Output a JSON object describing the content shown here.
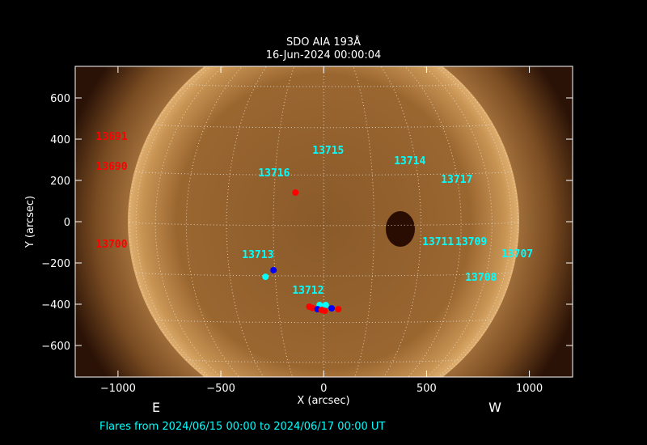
{
  "chart_data": {
    "type": "scatter",
    "title": "SDO AIA 193Å",
    "subtitle": "16-Jun-2024 00:00:04",
    "xlabel": "X (arcsec)",
    "ylabel": "Y (arcsec)",
    "xlim": [
      -1208,
      1210
    ],
    "ylim": [
      -753,
      753
    ],
    "xticks": [
      -1000,
      -500,
      0,
      500,
      1000
    ],
    "yticks": [
      -600,
      -400,
      -200,
      0,
      200,
      400,
      600
    ],
    "grid": "heliographic lat/lon dotted",
    "side_labels": {
      "east": "E",
      "west": "W"
    },
    "footer": "Flares from 2024/06/15 00:00 to 2024/06/17 00:00 UT",
    "colors": {
      "region_on_disk": "#00ffff",
      "region_off_disk": "#ff0000",
      "background": "#000000",
      "sun": "#b07a3c"
    },
    "regions": [
      {
        "name": "13691",
        "x": -1108,
        "y": 416,
        "color": "#ff0000"
      },
      {
        "name": "13690",
        "x": -1108,
        "y": 270,
        "color": "#ff0000"
      },
      {
        "name": "13700",
        "x": -1108,
        "y": -106,
        "color": "#ff0000"
      },
      {
        "name": "13716",
        "x": -318,
        "y": 239,
        "color": "#00ffff"
      },
      {
        "name": "13715",
        "x": -55,
        "y": 349,
        "color": "#00ffff"
      },
      {
        "name": "13714",
        "x": 342,
        "y": 298,
        "color": "#00ffff"
      },
      {
        "name": "13717",
        "x": 570,
        "y": 208,
        "color": "#00ffff"
      },
      {
        "name": "13711",
        "x": 479,
        "y": -94,
        "color": "#00ffff"
      },
      {
        "name": "13709",
        "x": 640,
        "y": -94,
        "color": "#00ffff"
      },
      {
        "name": "13707",
        "x": 864,
        "y": -153,
        "color": "#00ffff"
      },
      {
        "name": "13708",
        "x": 688,
        "y": -267,
        "color": "#00ffff"
      },
      {
        "name": "13713",
        "x": -397,
        "y": -157,
        "color": "#00ffff"
      },
      {
        "name": "13712",
        "x": -153,
        "y": -329,
        "color": "#00ffff"
      }
    ],
    "flares": [
      {
        "x": -137,
        "y": 141,
        "color": "#ff0000"
      },
      {
        "x": -244,
        "y": -235,
        "color": "#0000ff"
      },
      {
        "x": -283,
        "y": -267,
        "color": "#00ffff"
      },
      {
        "x": -70,
        "y": -412,
        "color": "#ff0000"
      },
      {
        "x": -55,
        "y": -418,
        "color": "#ff0000"
      },
      {
        "x": -20,
        "y": -404,
        "color": "#00ffff"
      },
      {
        "x": 10,
        "y": -404,
        "color": "#00ffff"
      },
      {
        "x": -30,
        "y": -424,
        "color": "#0000ff"
      },
      {
        "x": -10,
        "y": -428,
        "color": "#ff0000"
      },
      {
        "x": 5,
        "y": -432,
        "color": "#ff0000"
      },
      {
        "x": 39,
        "y": -420,
        "color": "#0000ff"
      },
      {
        "x": 71,
        "y": -424,
        "color": "#ff0000"
      }
    ]
  }
}
